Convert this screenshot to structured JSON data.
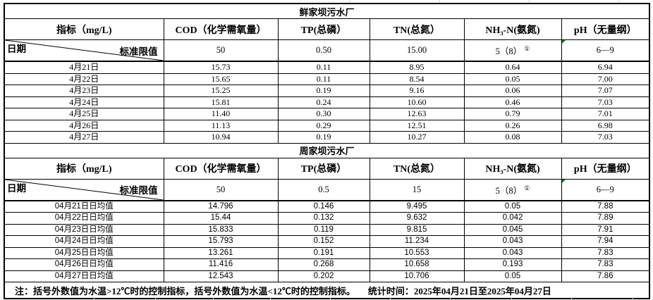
{
  "plants": [
    {
      "title": "鲜家坝污水厂",
      "columns": [
        "指标（mg/L)",
        "COD（化学需氧量）",
        "TP(总磷）",
        "TN(总氮）",
        "NH₃-N(氨氮)",
        "pH（无量纲）"
      ],
      "corner": {
        "row_label": "日期",
        "col_label": "标准限值"
      },
      "limits": {
        "cod": "50",
        "tp": "0.50",
        "tn": "15.00",
        "nh3": "5（8）",
        "nh3_note": "①",
        "ph": "6—9"
      },
      "rows": [
        [
          "4月21日",
          "15.73",
          "0.11",
          "8.95",
          "0.64",
          "6.94"
        ],
        [
          "4月22日",
          "15.65",
          "0.11",
          "8.54",
          "0.05",
          "7.00"
        ],
        [
          "4月23日",
          "15.25",
          "0.19",
          "9.16",
          "0.06",
          "7.07"
        ],
        [
          "4月24日",
          "15.81",
          "0.24",
          "10.60",
          "0.46",
          "7.03"
        ],
        [
          "4月25日",
          "11.40",
          "0.30",
          "12.63",
          "0.79",
          "7.01"
        ],
        [
          "4月26日",
          "11.13",
          "0.29",
          "12.51",
          "0.26",
          "6.98"
        ],
        [
          "4月27日",
          "10.94",
          "0.19",
          "10.27",
          "0.08",
          "7.03"
        ]
      ]
    },
    {
      "title": "周家坝污水厂",
      "columns": [
        "指标（mg/L)",
        "COD（化学需氧量）",
        "TP(总磷）",
        "TN(总氮）",
        "NH₃-N(氨氮)",
        "pH（无量纲）"
      ],
      "corner": {
        "row_label": "日期",
        "col_label": "标准限值"
      },
      "limits": {
        "cod": "50",
        "tp": "0.5",
        "tn": "15",
        "nh3": "5（8）",
        "nh3_note": "①",
        "ph": "6—9"
      },
      "rows": [
        [
          "04月21日日均值",
          "14.796",
          "0.146",
          "9.495",
          "0.05",
          "7.88"
        ],
        [
          "04月22日日均值",
          "15.44",
          "0.132",
          "9.632",
          "0.042",
          "7.89"
        ],
        [
          "04月23日日均值",
          "15.833",
          "0.119",
          "9.815",
          "0.045",
          "7.91"
        ],
        [
          "04月24日日均值",
          "15.793",
          "0.152",
          "11.234",
          "0.043",
          "7.94"
        ],
        [
          "04月25日日均值",
          "13.261",
          "0.191",
          "10.553",
          "0.043",
          "7.83"
        ],
        [
          "04月26日日均值",
          "11.416",
          "0.268",
          "10.658",
          "0.193",
          "7.83"
        ],
        [
          "04月27日日均值",
          "12.543",
          "0.202",
          "10.706",
          "0.05",
          "7.86"
        ]
      ]
    }
  ],
  "footer": {
    "note": "注：括号外数值为水温>12℃时的控制指标，括号外数值为水温<12℃时的控制指标。",
    "stat_time": "统计时间：2025年04月21日至2025年04月27日"
  },
  "flag_color": "#1f7a1f"
}
